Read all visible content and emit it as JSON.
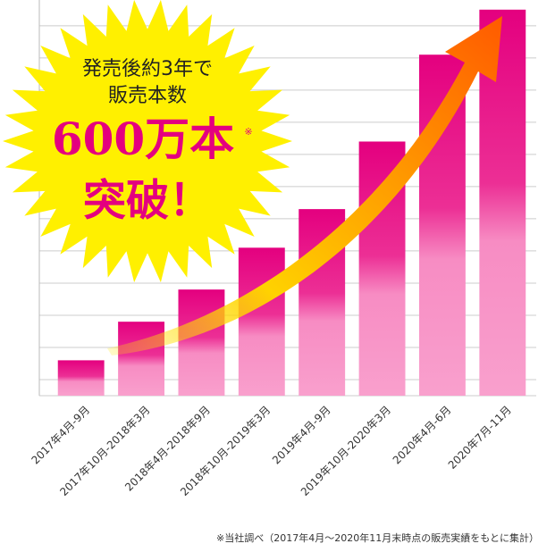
{
  "chart_data": {
    "type": "bar",
    "categories": [
      "2017年4月-9月",
      "2017年10月-2018年3月",
      "2018年4月-2018年9月",
      "2018年10月-2019年3月",
      "2019年4月-9月",
      "2019年10月-2020年3月",
      "2020年4月-6月",
      "2020年7月-11月"
    ],
    "values": [
      1.1,
      2.3,
      3.3,
      4.6,
      5.8,
      7.9,
      10.6,
      12
    ],
    "color": "#e4007f",
    "ylim": [
      0,
      12.3
    ],
    "gridlines": [
      0.5,
      1.5,
      2.5,
      3.5,
      4.5,
      5.5,
      6.5,
      7.5,
      8.5,
      9.5,
      10.5,
      11.5
    ],
    "badge": {
      "line1": "発売後約3年で",
      "line2": "販売本数",
      "headline": "600万本",
      "mark": "※",
      "line4": "突破！"
    },
    "footnote": "※当社調べ（2017年4月〜2020年11月末時点の販売実績をもとに集計）"
  }
}
